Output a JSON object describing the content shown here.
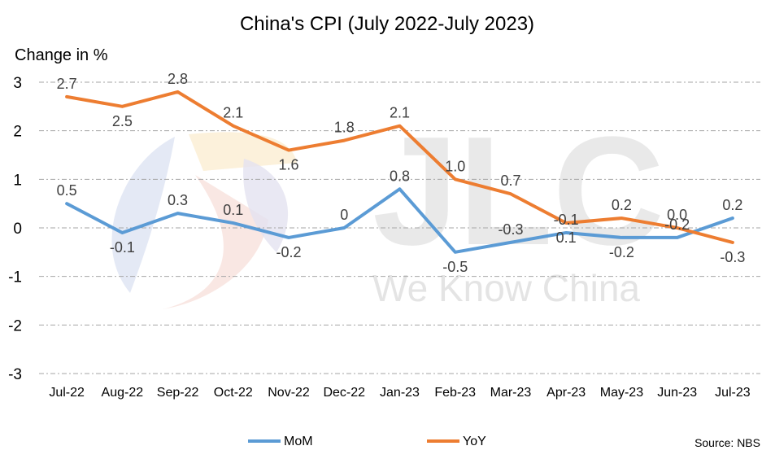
{
  "chart_data": {
    "type": "line",
    "title": "China's CPI (July 2022-July 2023)",
    "ylabel": "Change in %",
    "xlabel": "",
    "ylim": [
      -3,
      3
    ],
    "yticks": [
      3,
      2,
      1,
      0,
      -1,
      -2,
      -3
    ],
    "categories": [
      "Jul-22",
      "Aug-22",
      "Sep-22",
      "Oct-22",
      "Nov-22",
      "Dec-22",
      "Jan-23",
      "Feb-23",
      "Mar-23",
      "Apr-23",
      "May-23",
      "Jun-23",
      "Jul-23"
    ],
    "series": [
      {
        "name": "MoM",
        "color": "#5b9bd5",
        "values": [
          0.5,
          -0.1,
          0.3,
          0.1,
          -0.2,
          0,
          0.8,
          -0.5,
          -0.3,
          -0.1,
          -0.2,
          -0.2,
          0.2
        ],
        "labels": [
          "0.5",
          "-0.1",
          "0.3",
          "0.1",
          "-0.2",
          "0",
          "0.8",
          "-0.5",
          "-0.3",
          "-0.1",
          "-0.2",
          "-0.2",
          "0.2"
        ]
      },
      {
        "name": "YoY",
        "color": "#ed7d31",
        "values": [
          2.7,
          2.5,
          2.8,
          2.1,
          1.6,
          1.8,
          2.1,
          1.0,
          0.7,
          0.1,
          0.2,
          0.0,
          -0.3
        ],
        "labels": [
          "2.7",
          "2.5",
          "2.8",
          "2.1",
          "1.6",
          "1.8",
          "2.1",
          "1.0",
          "0.7",
          "0.1",
          "0.2",
          "0.0",
          "-0.3"
        ]
      }
    ],
    "grid": true,
    "legend_position": "bottom",
    "source": "Source: NBS"
  },
  "watermark": {
    "letters": "JLC",
    "tagline": "We Know China"
  }
}
